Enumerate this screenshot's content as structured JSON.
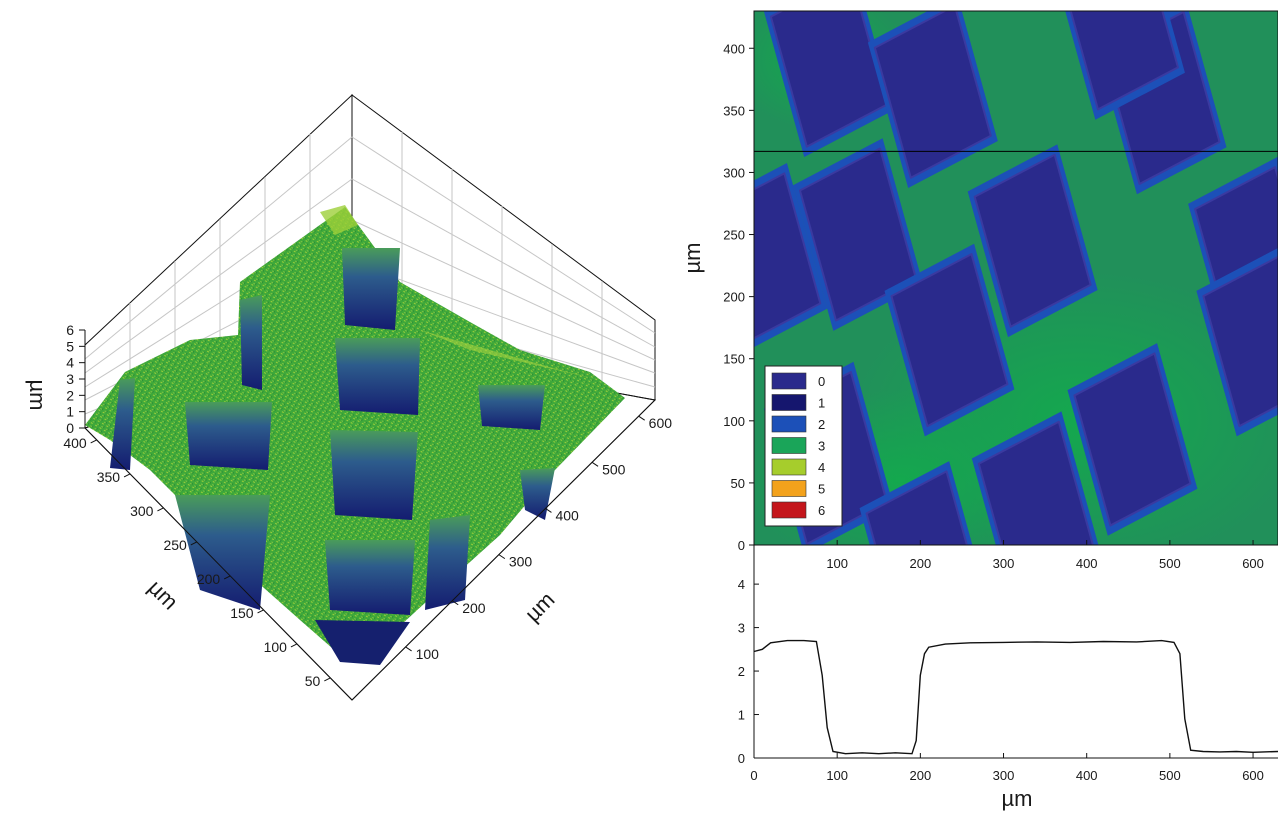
{
  "chart_data": [
    {
      "type": "heatmap",
      "subtype": "3d-surface",
      "z_ticks": [
        "0",
        "1",
        "2",
        "3",
        "4",
        "5",
        "6"
      ],
      "y_ticks": [
        "400",
        "350",
        "300",
        "250",
        "200",
        "150",
        "100",
        "50"
      ],
      "x_ticks": [
        "600",
        "500",
        "400",
        "300",
        "200",
        "100"
      ],
      "zlabel": "µm",
      "ylabel": "µm",
      "xlabel": "µm",
      "zlim": [
        0,
        6
      ],
      "grid": true,
      "surface_levels_um": {
        "top": 2.7,
        "well": 0.1
      },
      "colors": {
        "top": "#3fa83a",
        "highlight": "#9dcf3a",
        "wall": "#1b2b88",
        "well": "#15206e"
      }
    },
    {
      "type": "heatmap",
      "x_ticks": [
        "100",
        "200",
        "300",
        "400",
        "500",
        "600"
      ],
      "y_ticks": [
        "0",
        "50",
        "100",
        "150",
        "200",
        "250",
        "300",
        "350",
        "400"
      ],
      "ylabel": "µm",
      "xlim": [
        0,
        630
      ],
      "ylim": [
        0,
        430
      ],
      "profile_line_y": 317,
      "legend": {
        "placement": "bottom-left",
        "entries": [
          {
            "label": "0",
            "color": "#2a2a8c"
          },
          {
            "label": "1",
            "color": "#15166e"
          },
          {
            "label": "2",
            "color": "#1c50b8"
          },
          {
            "label": "3",
            "color": "#1aa559"
          },
          {
            "label": "4",
            "color": "#a6cd2c"
          },
          {
            "label": "5",
            "color": "#f3a21c"
          },
          {
            "label": "6",
            "color": "#c4161c"
          }
        ]
      },
      "colors": {
        "plateau": "#21905a",
        "plateau_light": "#14a84e",
        "well": "#2a2a8c",
        "rim": "#1c50b8"
      }
    },
    {
      "type": "line",
      "x_ticks": [
        "0",
        "100",
        "200",
        "300",
        "400",
        "500",
        "600"
      ],
      "y_ticks": [
        "0",
        "1",
        "2",
        "3",
        "4"
      ],
      "xlabel": "µm",
      "xlim": [
        0,
        630
      ],
      "ylim": [
        0,
        4.9
      ],
      "series": [
        {
          "x": [
            0,
            10,
            20,
            40,
            60,
            75,
            82,
            88,
            95,
            110,
            130,
            150,
            170,
            190,
            195,
            200,
            205,
            210,
            230,
            260,
            300,
            340,
            380,
            420,
            460,
            490,
            505,
            512,
            518,
            525,
            540,
            560,
            580,
            600,
            630
          ],
          "y": [
            2.45,
            2.5,
            2.65,
            2.7,
            2.7,
            2.68,
            1.9,
            0.7,
            0.15,
            0.1,
            0.12,
            0.1,
            0.12,
            0.1,
            0.4,
            1.9,
            2.4,
            2.55,
            2.62,
            2.65,
            2.66,
            2.67,
            2.66,
            2.68,
            2.67,
            2.7,
            2.66,
            2.4,
            0.9,
            0.18,
            0.15,
            0.14,
            0.15,
            0.13,
            0.15
          ]
        }
      ]
    }
  ]
}
